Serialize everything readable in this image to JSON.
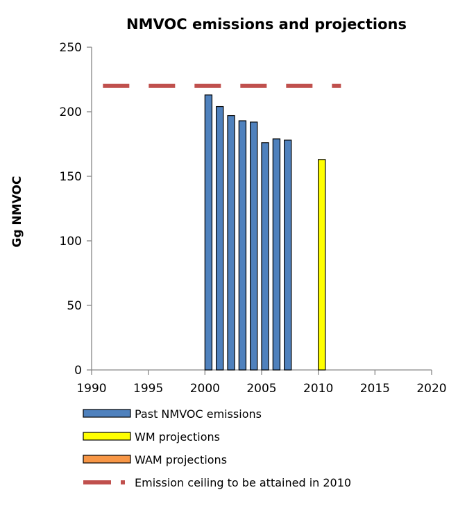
{
  "chart_data": {
    "type": "bar",
    "title": "NMVOC emissions and projections",
    "xlabel": "",
    "ylabel": "Gg NMVOC",
    "xlim": [
      1990,
      2020
    ],
    "ylim": [
      0,
      250
    ],
    "x_ticks": [
      1990,
      1995,
      2000,
      2005,
      2010,
      2015,
      2020
    ],
    "y_ticks": [
      0,
      50,
      100,
      150,
      200,
      250
    ],
    "grid": false,
    "legend_position": "bottom",
    "series": [
      {
        "name": "Past NMVOC emissions",
        "kind": "bar",
        "color": "#4f81bd",
        "x": [
          2000,
          2001,
          2002,
          2003,
          2004,
          2005,
          2006,
          2007
        ],
        "values": [
          213,
          204,
          197,
          193,
          192,
          176,
          179,
          178
        ]
      },
      {
        "name": "WM projections",
        "kind": "bar",
        "color": "#ffff00",
        "x": [
          2010
        ],
        "values": [
          163
        ]
      },
      {
        "name": "WAM projections",
        "kind": "bar",
        "color": "#f79646",
        "x": [],
        "values": []
      },
      {
        "name": "Emission ceiling to be attained in 2010",
        "kind": "dashed-line",
        "color": "#c0504d",
        "x": [
          1991,
          2012
        ],
        "values": [
          220,
          220
        ]
      }
    ]
  }
}
